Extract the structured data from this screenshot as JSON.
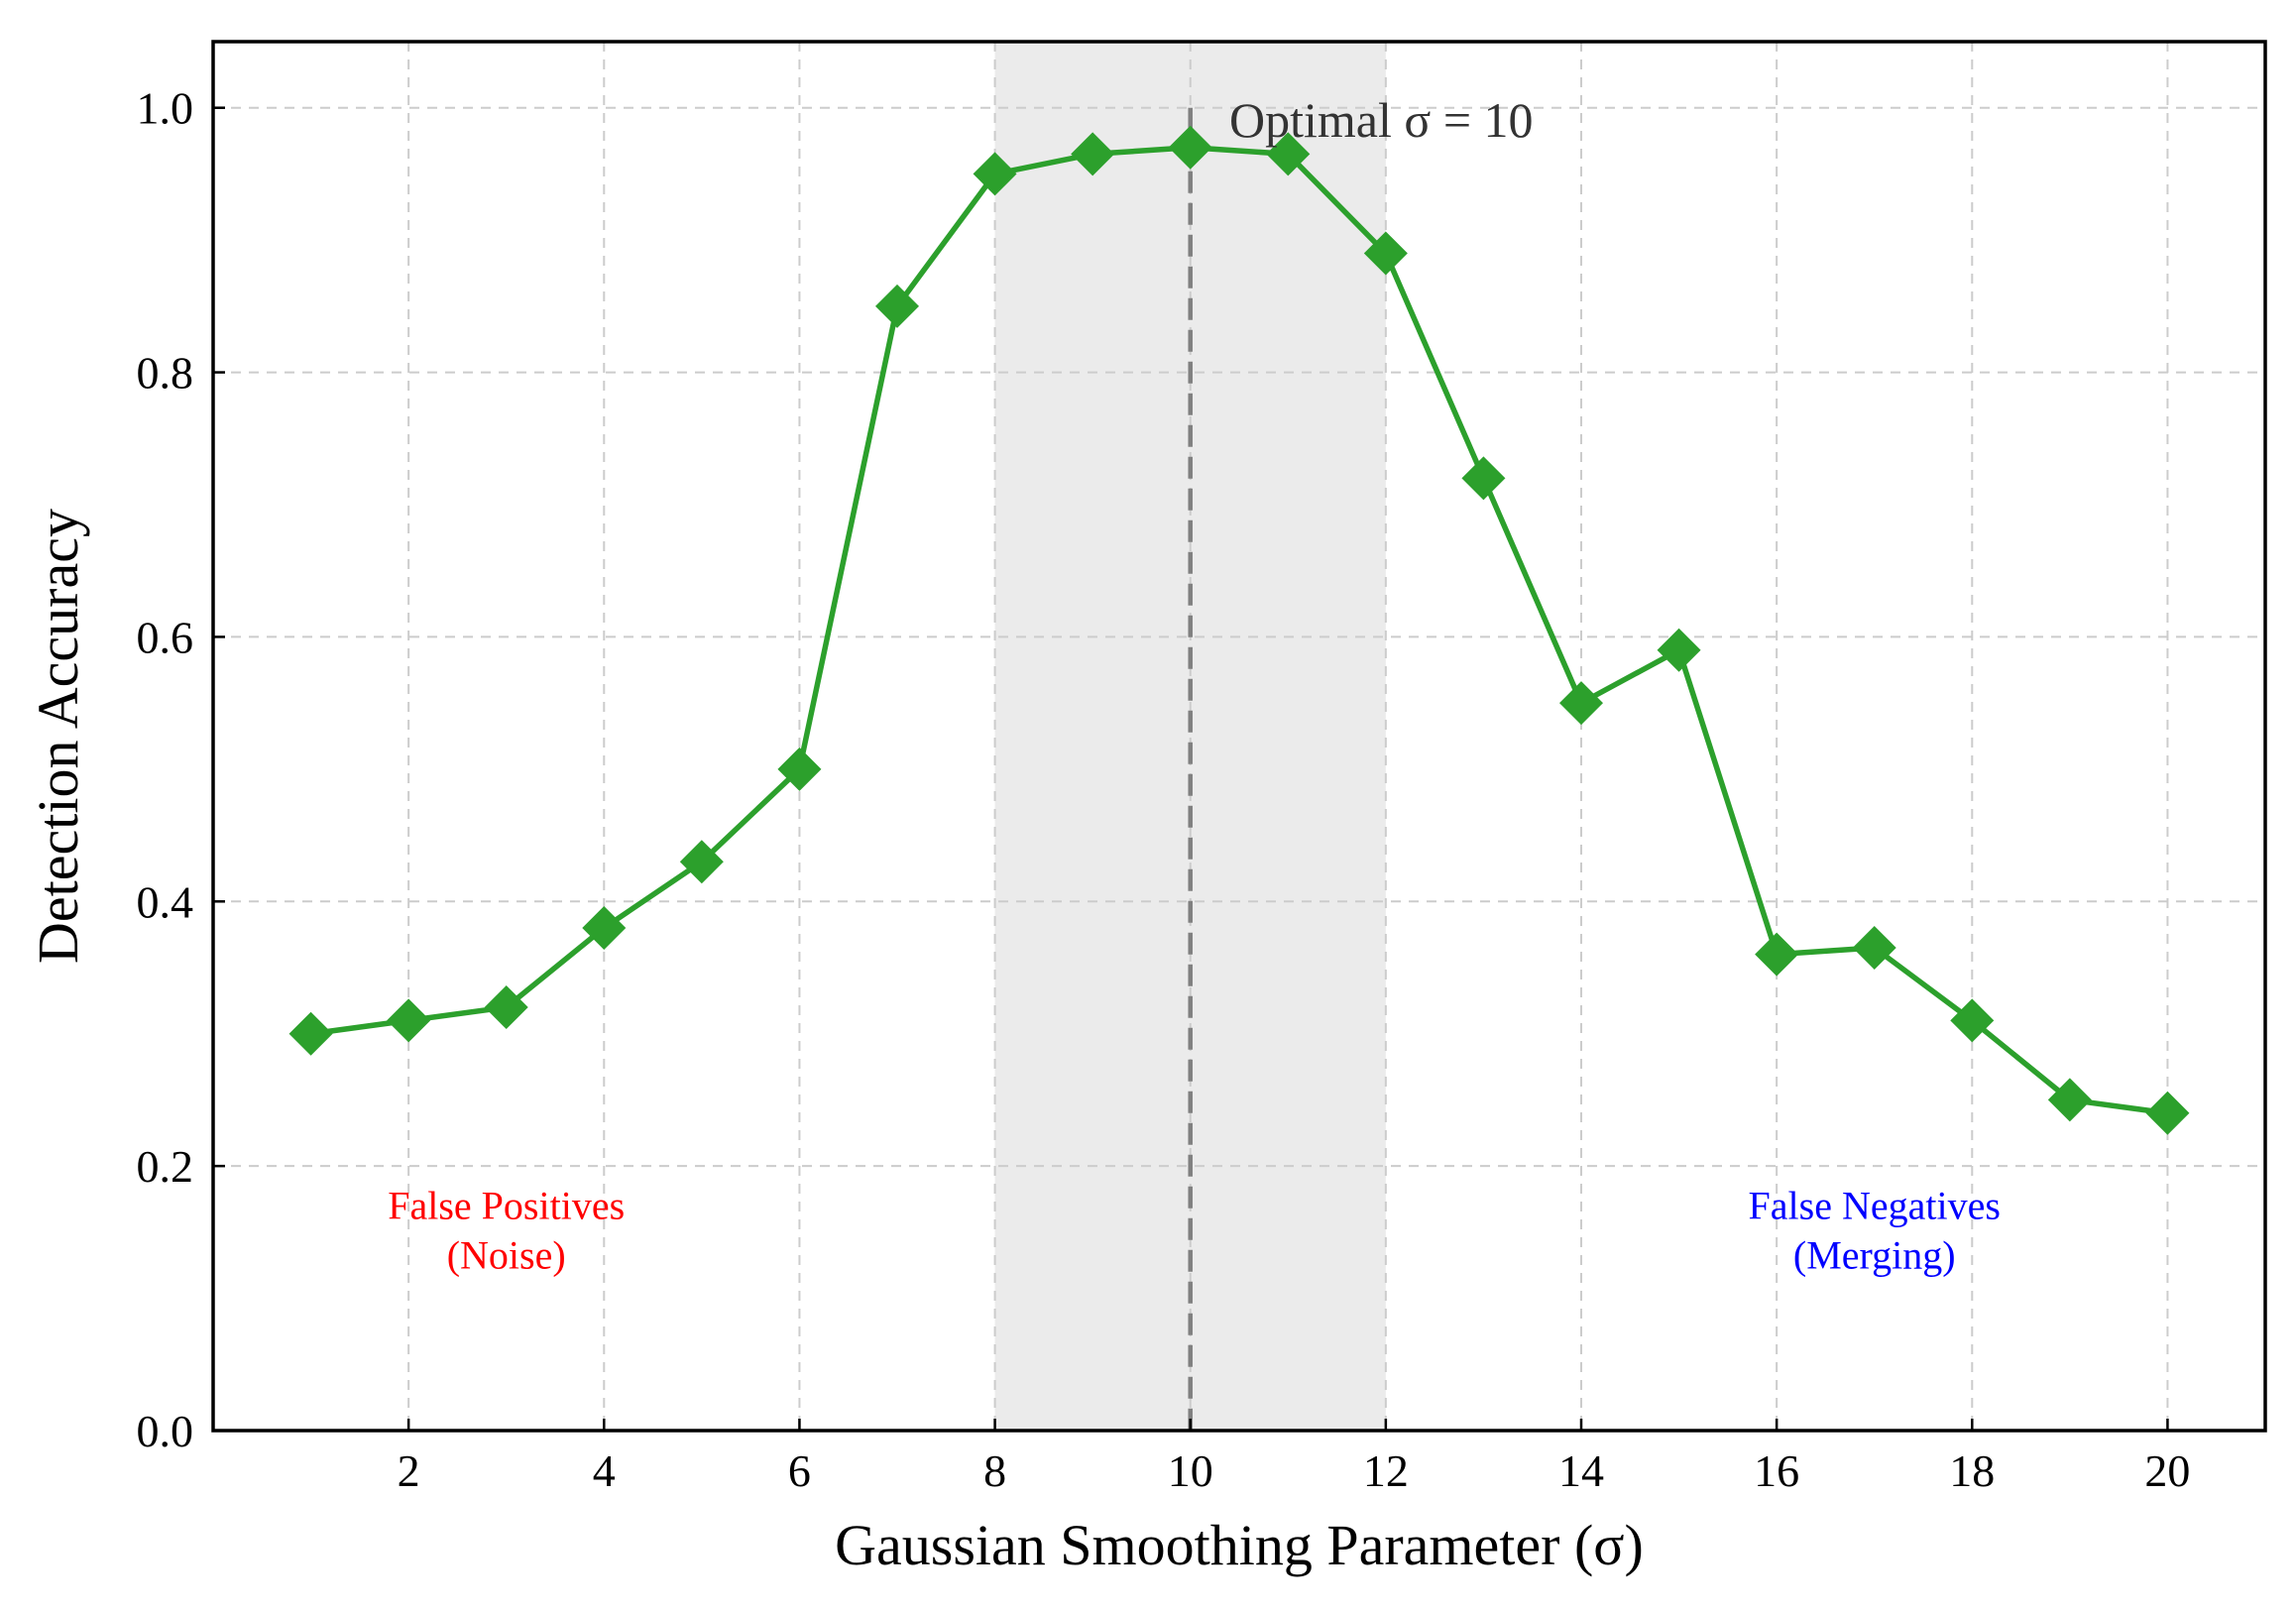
{
  "chart_data": {
    "type": "line",
    "x": [
      1,
      2,
      3,
      4,
      5,
      6,
      7,
      8,
      9,
      10,
      11,
      12,
      13,
      14,
      15,
      16,
      17,
      18,
      19,
      20
    ],
    "series": [
      {
        "values": [
          0.3,
          0.31,
          0.32,
          0.38,
          0.43,
          0.5,
          0.85,
          0.95,
          0.965,
          0.97,
          0.965,
          0.89,
          0.72,
          0.55,
          0.59,
          0.36,
          0.365,
          0.31,
          0.25,
          0.24
        ],
        "color": "#2ca02c",
        "marker": "diamond"
      }
    ],
    "xlabel": "Gaussian Smoothing Parameter (σ)",
    "ylabel": "Detection Accuracy",
    "xlim": [
      0.0,
      21.0
    ],
    "ylim": [
      0.0,
      1.05
    ],
    "xticks": [
      2,
      4,
      6,
      8,
      10,
      12,
      14,
      16,
      18,
      20
    ],
    "xtick_labels": [
      "2",
      "4",
      "6",
      "8",
      "10",
      "12",
      "14",
      "16",
      "18",
      "20"
    ],
    "yticks": [
      0.0,
      0.2,
      0.4,
      0.6,
      0.8,
      1.0
    ],
    "ytick_labels": [
      "0.0",
      "0.2",
      "0.4",
      "0.6",
      "0.8",
      "1.0"
    ],
    "grid": true,
    "shaded_region": {
      "x_from": 8,
      "x_to": 12,
      "color": "#ebebeb"
    },
    "vertical_line": {
      "x": 10,
      "color": "#808080",
      "style": "dashed"
    },
    "annotations": [
      {
        "text": "Optimal σ = 10",
        "x": 10.5,
        "y": 0.99,
        "color": "#333333"
      },
      {
        "lines": [
          "False Positives",
          "(Noise)"
        ],
        "x": 3,
        "y": 0.16,
        "color": "#ff0000"
      },
      {
        "lines": [
          "False Negatives",
          "(Merging)"
        ],
        "x": 17,
        "y": 0.16,
        "color": "#0000ff"
      }
    ]
  }
}
